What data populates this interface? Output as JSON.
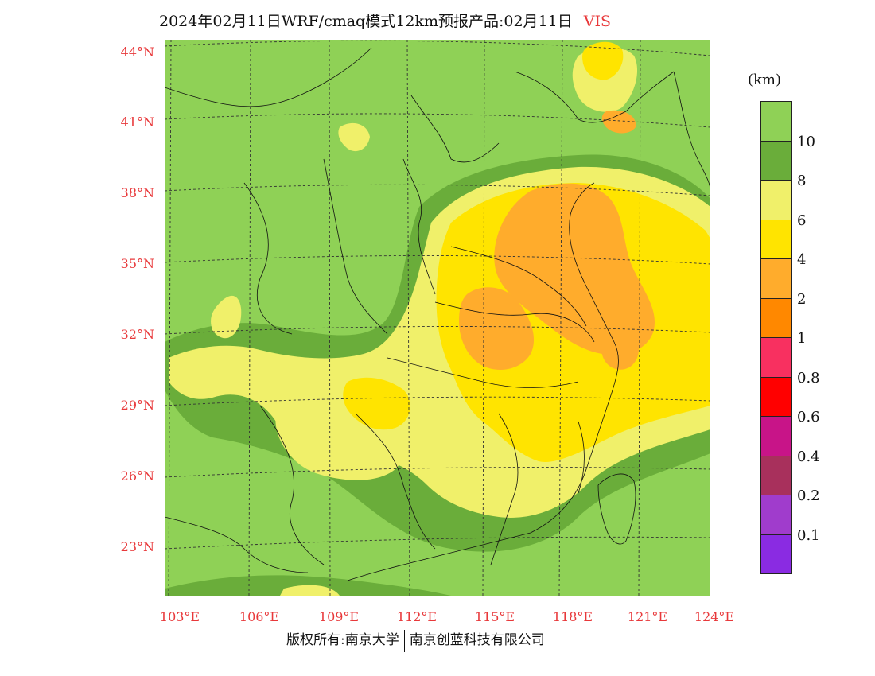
{
  "title": {
    "main": "2024年02月11日WRF/cmaq模式12km预报产品:02月11日",
    "variable": "VIS"
  },
  "lat_labels": [
    "44°N",
    "41°N",
    "38°N",
    "35°N",
    "32°N",
    "29°N",
    "26°N",
    "23°N"
  ],
  "lon_labels": [
    "103°E",
    "106°E",
    "109°E",
    "112°E",
    "115°E",
    "118°E",
    "121°E",
    "124°E"
  ],
  "legend": {
    "unit": "(km)",
    "labels": [
      "10",
      "8",
      "6",
      "4",
      "2",
      "1",
      "0.8",
      "0.6",
      "0.4",
      "0.2",
      "0.1"
    ],
    "colors": [
      "#8fd156",
      "#6aad3a",
      "#f0f06a",
      "#ffe400",
      "#ffac2c",
      "#ff8800",
      "#f83060",
      "#ff0000",
      "#c81488",
      "#a8305c",
      "#a03ccc",
      "#8a2be2"
    ]
  },
  "footer": {
    "left": "版权所有:南京大学",
    "right": "南京创蓝科技有限公司"
  },
  "colors": {
    "label_red": "#e8383a",
    "background_green": "#8fd156"
  }
}
